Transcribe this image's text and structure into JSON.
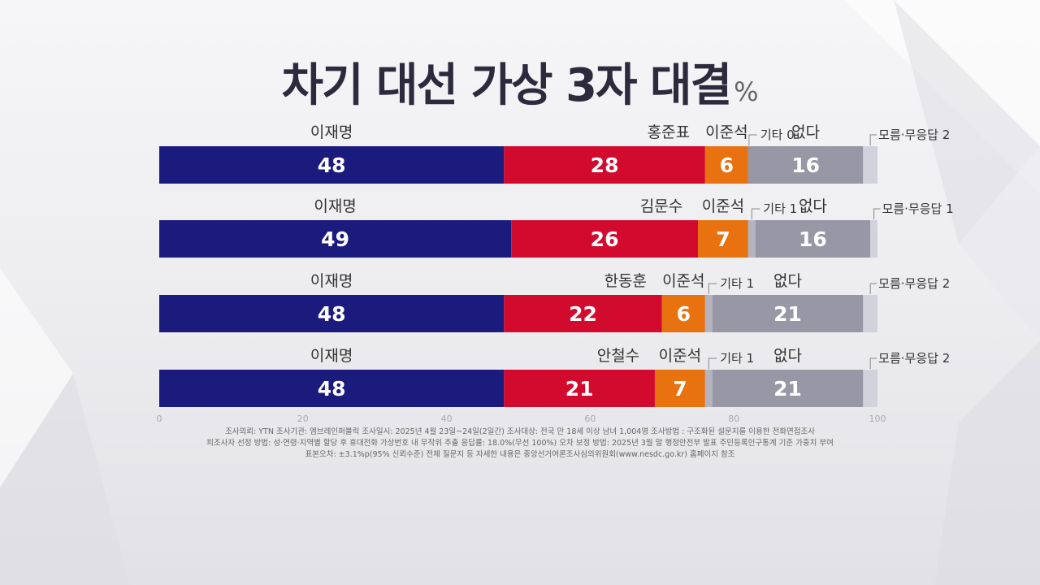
{
  "title": "차기 대선 가상 3자 대결",
  "unit": "%",
  "chart_data": {
    "type": "bar",
    "stacked": true,
    "orientation": "horizontal",
    "title": "차기 대선 가상 3자 대결",
    "unit": "%",
    "xlim": [
      0,
      100
    ],
    "x_ticks": [
      "0",
      "20",
      "40",
      "60",
      "80",
      "100"
    ],
    "rows": [
      {
        "segments": [
          {
            "name": "이재명",
            "value": 48,
            "color": "#1b1b7d",
            "label": "48"
          },
          {
            "name": "홍준표",
            "value": 28,
            "color": "#d20a2e",
            "label": "28"
          },
          {
            "name": "이준석",
            "value": 6,
            "color": "#e8720f",
            "label": "6"
          },
          {
            "name": "기타 0",
            "value": 0,
            "color": "#b4b4c0",
            "label": ""
          },
          {
            "name": "없다",
            "value": 16,
            "color": "#9797a5",
            "label": "16"
          },
          {
            "name": "모름·무응답 2",
            "value": 2,
            "color": "#d2d2dc",
            "label": ""
          }
        ]
      },
      {
        "segments": [
          {
            "name": "이재명",
            "value": 49,
            "color": "#1b1b7d",
            "label": "49"
          },
          {
            "name": "김문수",
            "value": 26,
            "color": "#d20a2e",
            "label": "26"
          },
          {
            "name": "이준석",
            "value": 7,
            "color": "#e8720f",
            "label": "7"
          },
          {
            "name": "기타 1",
            "value": 1,
            "color": "#b4b4c0",
            "label": ""
          },
          {
            "name": "없다",
            "value": 16,
            "color": "#9797a5",
            "label": "16"
          },
          {
            "name": "모름·무응답 1",
            "value": 1,
            "color": "#d2d2dc",
            "label": ""
          }
        ]
      },
      {
        "segments": [
          {
            "name": "이재명",
            "value": 48,
            "color": "#1b1b7d",
            "label": "48"
          },
          {
            "name": "한동훈",
            "value": 22,
            "color": "#d20a2e",
            "label": "22"
          },
          {
            "name": "이준석",
            "value": 6,
            "color": "#e8720f",
            "label": "6"
          },
          {
            "name": "기타 1",
            "value": 1,
            "color": "#b4b4c0",
            "label": ""
          },
          {
            "name": "없다",
            "value": 21,
            "color": "#9797a5",
            "label": "21"
          },
          {
            "name": "모름·무응답 2",
            "value": 2,
            "color": "#d2d2dc",
            "label": ""
          }
        ]
      },
      {
        "segments": [
          {
            "name": "이재명",
            "value": 48,
            "color": "#1b1b7d",
            "label": "48"
          },
          {
            "name": "안철수",
            "value": 21,
            "color": "#d20a2e",
            "label": "21"
          },
          {
            "name": "이준석",
            "value": 7,
            "color": "#e8720f",
            "label": "7"
          },
          {
            "name": "기타 1",
            "value": 1,
            "color": "#b4b4c0",
            "label": ""
          },
          {
            "name": "없다",
            "value": 21,
            "color": "#9797a5",
            "label": "21"
          },
          {
            "name": "모름·무응답 2",
            "value": 2,
            "color": "#d2d2dc",
            "label": ""
          }
        ]
      }
    ]
  },
  "footnote": {
    "lines": [
      "조사의뢰: YTN     조사기관: 엠브레인퍼블릭     조사일시: 2025년 4월 23일~24일(2일간)     조사대상: 전국 만 18세 이상 남녀 1,004명     조사방법 : 구조화된 설문지를 이용한 전화면접조사",
      "피조사자 선정 방법: 성·연령·지역별 할당 후 휴대전화 가상번호 내 무작위 추출     응답률: 18.0%(무선 100%)     오차 보정 방법: 2025년 3월 말 행정안전부 발표 주민등록인구통계 기준 가중치 부여",
      "표본오차: ±3.1%p(95% 신뢰수준)     전체 질문지 등 자세한 내용은 중앙선거여론조사심의위원회(www.nesdc.go.kr) 홈페이지 참조"
    ]
  }
}
